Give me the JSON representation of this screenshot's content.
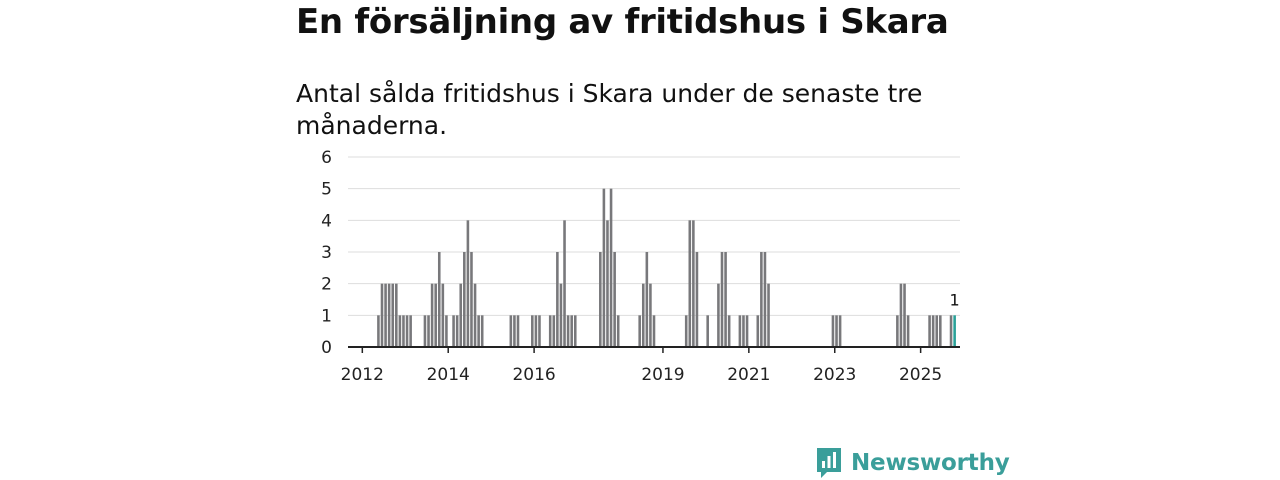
{
  "title": "En försäljning av fritidshus i Skara",
  "subtitle": "Antal sålda fritidshus i Skara under de senaste tre månaderna.",
  "brand": {
    "name": "Newsworthy",
    "logo_icon": "newsworthy-logo-icon"
  },
  "colors": {
    "bar": "#78787b",
    "highlight": "#2aa198",
    "grid": "#dddddd",
    "axis": "#222222",
    "brand": "#3a9e9a"
  },
  "chart_data": {
    "type": "bar",
    "title": "",
    "xlabel": "",
    "ylabel": "",
    "ylim": [
      0,
      6
    ],
    "yticks": [
      0,
      1,
      2,
      3,
      4,
      5,
      6
    ],
    "xlim": [
      "2011-09",
      "2025-12"
    ],
    "xticks": [
      {
        "label": "2012",
        "date": "2012-01"
      },
      {
        "label": "2014",
        "date": "2014-01"
      },
      {
        "label": "2016",
        "date": "2016-01"
      },
      {
        "label": "2019",
        "date": "2019-01"
      },
      {
        "label": "2021",
        "date": "2021-01"
      },
      {
        "label": "2023",
        "date": "2023-01"
      },
      {
        "label": "2025",
        "date": "2025-01"
      }
    ],
    "grid": true,
    "series": [
      {
        "points": [
          {
            "x": "2012-05",
            "y": 1
          },
          {
            "x": "2012-06",
            "y": 2
          },
          {
            "x": "2012-07",
            "y": 2
          },
          {
            "x": "2012-08",
            "y": 2
          },
          {
            "x": "2012-09",
            "y": 2
          },
          {
            "x": "2012-10",
            "y": 2
          },
          {
            "x": "2012-11",
            "y": 1
          },
          {
            "x": "2012-12",
            "y": 1
          },
          {
            "x": "2013-01",
            "y": 1
          },
          {
            "x": "2013-02",
            "y": 1
          },
          {
            "x": "2013-06",
            "y": 1
          },
          {
            "x": "2013-07",
            "y": 1
          },
          {
            "x": "2013-08",
            "y": 2
          },
          {
            "x": "2013-09",
            "y": 2
          },
          {
            "x": "2013-10",
            "y": 3
          },
          {
            "x": "2013-11",
            "y": 2
          },
          {
            "x": "2013-12",
            "y": 1
          },
          {
            "x": "2014-02",
            "y": 1
          },
          {
            "x": "2014-03",
            "y": 1
          },
          {
            "x": "2014-04",
            "y": 2
          },
          {
            "x": "2014-05",
            "y": 3
          },
          {
            "x": "2014-06",
            "y": 4
          },
          {
            "x": "2014-07",
            "y": 3
          },
          {
            "x": "2014-08",
            "y": 2
          },
          {
            "x": "2014-09",
            "y": 1
          },
          {
            "x": "2014-10",
            "y": 1
          },
          {
            "x": "2015-06",
            "y": 1
          },
          {
            "x": "2015-07",
            "y": 1
          },
          {
            "x": "2015-08",
            "y": 1
          },
          {
            "x": "2015-12",
            "y": 1
          },
          {
            "x": "2016-01",
            "y": 1
          },
          {
            "x": "2016-02",
            "y": 1
          },
          {
            "x": "2016-05",
            "y": 1
          },
          {
            "x": "2016-06",
            "y": 1
          },
          {
            "x": "2016-07",
            "y": 3
          },
          {
            "x": "2016-08",
            "y": 2
          },
          {
            "x": "2016-09",
            "y": 4
          },
          {
            "x": "2016-10",
            "y": 1
          },
          {
            "x": "2016-11",
            "y": 1
          },
          {
            "x": "2016-12",
            "y": 1
          },
          {
            "x": "2017-07",
            "y": 3
          },
          {
            "x": "2017-08",
            "y": 5
          },
          {
            "x": "2017-09",
            "y": 4
          },
          {
            "x": "2017-10",
            "y": 5
          },
          {
            "x": "2017-11",
            "y": 3
          },
          {
            "x": "2017-12",
            "y": 1
          },
          {
            "x": "2018-06",
            "y": 1
          },
          {
            "x": "2018-07",
            "y": 2
          },
          {
            "x": "2018-08",
            "y": 3
          },
          {
            "x": "2018-09",
            "y": 2
          },
          {
            "x": "2018-10",
            "y": 1
          },
          {
            "x": "2019-07",
            "y": 1
          },
          {
            "x": "2019-08",
            "y": 4
          },
          {
            "x": "2019-09",
            "y": 4
          },
          {
            "x": "2019-10",
            "y": 3
          },
          {
            "x": "2020-01",
            "y": 1
          },
          {
            "x": "2020-04",
            "y": 2
          },
          {
            "x": "2020-05",
            "y": 3
          },
          {
            "x": "2020-06",
            "y": 3
          },
          {
            "x": "2020-07",
            "y": 1
          },
          {
            "x": "2020-10",
            "y": 1
          },
          {
            "x": "2020-11",
            "y": 1
          },
          {
            "x": "2020-12",
            "y": 1
          },
          {
            "x": "2021-03",
            "y": 1
          },
          {
            "x": "2021-04",
            "y": 3
          },
          {
            "x": "2021-05",
            "y": 3
          },
          {
            "x": "2021-06",
            "y": 2
          },
          {
            "x": "2022-12",
            "y": 1
          },
          {
            "x": "2023-01",
            "y": 1
          },
          {
            "x": "2023-02",
            "y": 1
          },
          {
            "x": "2024-06",
            "y": 1
          },
          {
            "x": "2024-07",
            "y": 2
          },
          {
            "x": "2024-08",
            "y": 2
          },
          {
            "x": "2024-09",
            "y": 1
          },
          {
            "x": "2025-03",
            "y": 1
          },
          {
            "x": "2025-04",
            "y": 1
          },
          {
            "x": "2025-05",
            "y": 1
          },
          {
            "x": "2025-06",
            "y": 1
          },
          {
            "x": "2025-09",
            "y": 1
          },
          {
            "x": "2025-10",
            "y": 1,
            "highlight": true,
            "label": "1"
          }
        ]
      }
    ]
  }
}
